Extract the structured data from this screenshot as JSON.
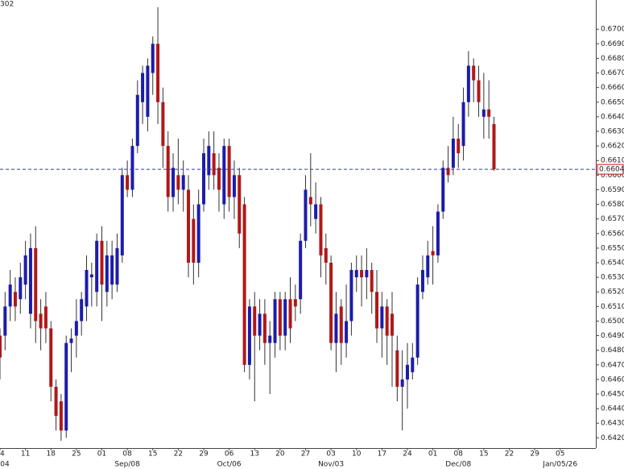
{
  "chart_data": {
    "type": "candlestick",
    "title": "302",
    "series": [
      {
        "up_color": "#1c1caa",
        "down_color": "#b01818",
        "open": [
          0.649,
          0.649,
          0.651,
          0.652,
          0.6515,
          0.6525,
          0.6505,
          0.655,
          0.6505,
          0.651,
          0.6495,
          0.6455,
          0.6445,
          0.6425,
          0.6485,
          0.649,
          0.65,
          0.651,
          0.653,
          0.652,
          0.6555,
          0.652,
          0.6525,
          0.6525,
          0.6545,
          0.66,
          0.659,
          0.662,
          0.665,
          0.664,
          0.667,
          0.669,
          0.665,
          0.662,
          0.6585,
          0.66,
          0.659,
          0.659,
          0.657,
          0.654,
          0.658,
          0.66,
          0.6615,
          0.6605,
          0.658,
          0.662,
          0.6585,
          0.66,
          0.658,
          0.647,
          0.651,
          0.649,
          0.6505,
          0.6485,
          0.6485,
          0.6515,
          0.649,
          0.6515,
          0.6515,
          0.6515,
          0.6555,
          0.6585,
          0.657,
          0.658,
          0.655,
          0.654,
          0.6485,
          0.651,
          0.6485,
          0.65,
          0.653,
          0.6535,
          0.653,
          0.6535,
          0.652,
          0.6495,
          0.651,
          0.6505,
          0.648,
          0.6455,
          0.646,
          0.6465,
          0.6475,
          0.652,
          0.653,
          0.6548,
          0.6545,
          0.6575,
          0.6605,
          0.6605,
          0.6625,
          0.662,
          0.665,
          0.6675,
          0.6665,
          0.664,
          0.6645,
          0.6635
        ],
        "high": [
          0.6495,
          0.652,
          0.6535,
          0.653,
          0.654,
          0.6555,
          0.656,
          0.6565,
          0.6515,
          0.652,
          0.65,
          0.646,
          0.645,
          0.649,
          0.6495,
          0.6515,
          0.652,
          0.6545,
          0.654,
          0.656,
          0.6565,
          0.6555,
          0.6555,
          0.656,
          0.6605,
          0.661,
          0.6625,
          0.6665,
          0.6675,
          0.668,
          0.6695,
          0.6715,
          0.666,
          0.663,
          0.6615,
          0.6625,
          0.661,
          0.66,
          0.658,
          0.659,
          0.6625,
          0.663,
          0.663,
          0.6615,
          0.6625,
          0.6625,
          0.661,
          0.6605,
          0.6585,
          0.6515,
          0.652,
          0.6515,
          0.6515,
          0.65,
          0.652,
          0.652,
          0.652,
          0.653,
          0.6525,
          0.656,
          0.66,
          0.6615,
          0.6595,
          0.6585,
          0.656,
          0.6545,
          0.652,
          0.6515,
          0.6525,
          0.654,
          0.6545,
          0.6545,
          0.655,
          0.654,
          0.6535,
          0.652,
          0.6515,
          0.652,
          0.649,
          0.648,
          0.6485,
          0.6485,
          0.653,
          0.6545,
          0.6555,
          0.6565,
          0.658,
          0.661,
          0.662,
          0.664,
          0.6635,
          0.666,
          0.6685,
          0.668,
          0.6675,
          0.667,
          0.6665,
          0.664
        ],
        "low": [
          0.646,
          0.648,
          0.65,
          0.65,
          0.6505,
          0.6515,
          0.6495,
          0.6485,
          0.648,
          0.6485,
          0.6445,
          0.6425,
          0.6418,
          0.642,
          0.6465,
          0.6475,
          0.649,
          0.65,
          0.651,
          0.651,
          0.65,
          0.651,
          0.6515,
          0.652,
          0.654,
          0.6585,
          0.6585,
          0.6615,
          0.6635,
          0.663,
          0.6655,
          0.6635,
          0.6605,
          0.6575,
          0.6575,
          0.658,
          0.6575,
          0.653,
          0.6525,
          0.653,
          0.6575,
          0.659,
          0.659,
          0.6575,
          0.657,
          0.6575,
          0.657,
          0.655,
          0.6465,
          0.646,
          0.6445,
          0.648,
          0.647,
          0.645,
          0.6475,
          0.648,
          0.648,
          0.6485,
          0.65,
          0.6505,
          0.655,
          0.6565,
          0.656,
          0.653,
          0.6525,
          0.648,
          0.6465,
          0.647,
          0.6475,
          0.649,
          0.652,
          0.651,
          0.6515,
          0.6505,
          0.6485,
          0.6475,
          0.647,
          0.6455,
          0.6445,
          0.6425,
          0.644,
          0.646,
          0.647,
          0.6515,
          0.6525,
          0.6525,
          0.654,
          0.657,
          0.6595,
          0.66,
          0.6605,
          0.661,
          0.664,
          0.665,
          0.664,
          0.6625,
          0.6625,
          0.6603
        ],
        "close": [
          0.6475,
          0.651,
          0.6525,
          0.651,
          0.653,
          0.6545,
          0.655,
          0.65,
          0.6495,
          0.6495,
          0.6455,
          0.6435,
          0.6425,
          0.6485,
          0.6488,
          0.65,
          0.6515,
          0.6535,
          0.6532,
          0.6555,
          0.6525,
          0.6545,
          0.6545,
          0.655,
          0.66,
          0.659,
          0.662,
          0.6655,
          0.667,
          0.6675,
          0.669,
          0.665,
          0.662,
          0.6585,
          0.6605,
          0.659,
          0.66,
          0.654,
          0.654,
          0.658,
          0.6615,
          0.662,
          0.66,
          0.659,
          0.662,
          0.6585,
          0.66,
          0.656,
          0.647,
          0.651,
          0.649,
          0.6505,
          0.6485,
          0.649,
          0.6515,
          0.649,
          0.6515,
          0.6495,
          0.651,
          0.6555,
          0.659,
          0.658,
          0.658,
          0.6545,
          0.654,
          0.6485,
          0.6505,
          0.6485,
          0.65,
          0.6535,
          0.6535,
          0.653,
          0.6535,
          0.652,
          0.6495,
          0.651,
          0.649,
          0.649,
          0.6455,
          0.646,
          0.647,
          0.6475,
          0.6525,
          0.6535,
          0.6545,
          0.6545,
          0.6575,
          0.6605,
          0.66,
          0.6625,
          0.6615,
          0.665,
          0.6675,
          0.6665,
          0.665,
          0.6645,
          0.664,
          0.6604
        ]
      }
    ],
    "last_price": {
      "value": 0.6604,
      "label": "0.6604"
    },
    "xlim": [
      0,
      117
    ],
    "xticks": [
      {
        "value": 0,
        "label": "04"
      },
      {
        "value": 5,
        "label": "11"
      },
      {
        "value": 10,
        "label": "18"
      },
      {
        "value": 15,
        "label": "25"
      },
      {
        "value": 20,
        "label": "01"
      },
      {
        "value": 25,
        "label": "08"
      },
      {
        "value": 30,
        "label": "15"
      },
      {
        "value": 35,
        "label": "22"
      },
      {
        "value": 40,
        "label": "29"
      },
      {
        "value": 45,
        "label": "06"
      },
      {
        "value": 50,
        "label": "13"
      },
      {
        "value": 55,
        "label": "20"
      },
      {
        "value": 60,
        "label": "27"
      },
      {
        "value": 65,
        "label": "03"
      },
      {
        "value": 70,
        "label": "10"
      },
      {
        "value": 75,
        "label": "17"
      },
      {
        "value": 80,
        "label": "24"
      },
      {
        "value": 85,
        "label": "01"
      },
      {
        "value": 90,
        "label": "08"
      },
      {
        "value": 95,
        "label": "15"
      },
      {
        "value": 100,
        "label": "22"
      },
      {
        "value": 105,
        "label": "29"
      },
      {
        "value": 110,
        "label": "05"
      }
    ],
    "month_ticks": [
      {
        "value": 0,
        "label": "04"
      },
      {
        "value": 25,
        "label": "Sep/08"
      },
      {
        "value": 45,
        "label": "Oct/06"
      },
      {
        "value": 65,
        "label": "Nov/03"
      },
      {
        "value": 90,
        "label": "Dec/08"
      },
      {
        "value": 110,
        "label": "Jan/05/26"
      }
    ],
    "ylim": [
      0.6413,
      0.672
    ],
    "yticks": [
      {
        "value": 0.642,
        "label": "0.6420"
      },
      {
        "value": 0.643,
        "label": "0.6430"
      },
      {
        "value": 0.644,
        "label": "0.6440"
      },
      {
        "value": 0.645,
        "label": "0.6450"
      },
      {
        "value": 0.646,
        "label": "0.6460"
      },
      {
        "value": 0.647,
        "label": "0.6470"
      },
      {
        "value": 0.648,
        "label": "0.6480"
      },
      {
        "value": 0.649,
        "label": "0.6490"
      },
      {
        "value": 0.65,
        "label": "0.6500"
      },
      {
        "value": 0.651,
        "label": "0.6510"
      },
      {
        "value": 0.652,
        "label": "0.6520"
      },
      {
        "value": 0.653,
        "label": "0.6530"
      },
      {
        "value": 0.654,
        "label": "0.6540"
      },
      {
        "value": 0.655,
        "label": "0.6550"
      },
      {
        "value": 0.656,
        "label": "0.6560"
      },
      {
        "value": 0.657,
        "label": "0.6570"
      },
      {
        "value": 0.658,
        "label": "0.6580"
      },
      {
        "value": 0.659,
        "label": "0.6590"
      },
      {
        "value": 0.66,
        "label": "0.6600"
      },
      {
        "value": 0.661,
        "label": "0.6610"
      },
      {
        "value": 0.662,
        "label": "0.6620"
      },
      {
        "value": 0.663,
        "label": "0.6630"
      },
      {
        "value": 0.664,
        "label": "0.6640"
      },
      {
        "value": 0.665,
        "label": "0.6650"
      },
      {
        "value": 0.666,
        "label": "0.6660"
      },
      {
        "value": 0.667,
        "label": "0.6670"
      },
      {
        "value": 0.668,
        "label": "0.6680"
      },
      {
        "value": 0.669,
        "label": "0.6690"
      },
      {
        "value": 0.67,
        "label": "0.6700"
      }
    ],
    "grid": false
  }
}
